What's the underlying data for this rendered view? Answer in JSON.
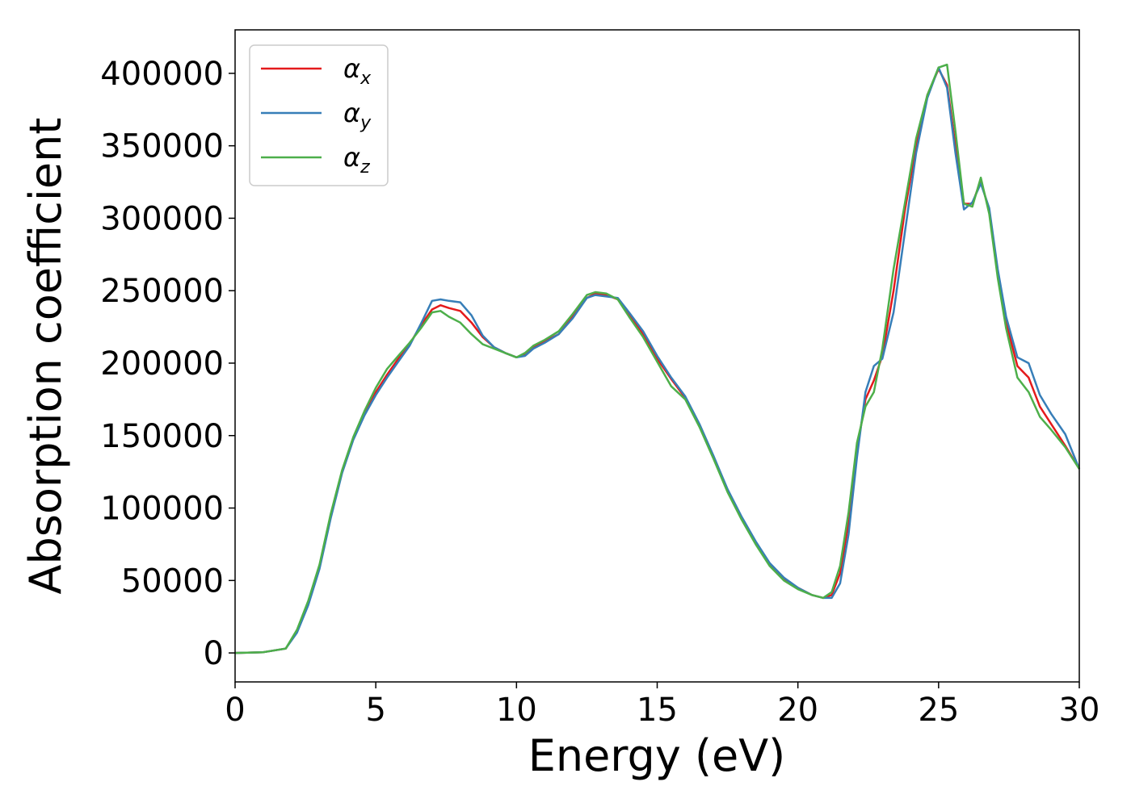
{
  "chart_data": {
    "type": "line",
    "xlabel": "Energy (eV)",
    "ylabel": "Absorption coefficient",
    "xlim": [
      0,
      30
    ],
    "ylim": [
      -20000,
      430000
    ],
    "xticks": [
      0,
      5,
      10,
      15,
      20,
      25,
      30
    ],
    "yticks": [
      0,
      50000,
      100000,
      150000,
      200000,
      250000,
      300000,
      350000,
      400000
    ],
    "grid": false,
    "legend_position": "top-left",
    "x": [
      0,
      1,
      1.8,
      2.2,
      2.6,
      3.0,
      3.4,
      3.8,
      4.2,
      4.6,
      5.0,
      5.4,
      5.8,
      6.2,
      6.6,
      7.0,
      7.3,
      7.6,
      8.0,
      8.4,
      8.8,
      9.2,
      9.6,
      10.0,
      10.3,
      10.6,
      11.0,
      11.5,
      12.0,
      12.5,
      12.8,
      13.2,
      13.6,
      14.0,
      14.5,
      15.0,
      15.5,
      16.0,
      16.5,
      17.0,
      17.5,
      18.0,
      18.5,
      19.0,
      19.5,
      20.0,
      20.5,
      20.9,
      21.2,
      21.5,
      21.8,
      22.1,
      22.4,
      22.7,
      23.0,
      23.4,
      23.8,
      24.2,
      24.6,
      25.0,
      25.3,
      25.6,
      25.9,
      26.2,
      26.5,
      26.8,
      27.1,
      27.4,
      27.8,
      28.2,
      28.6,
      29.0,
      29.5,
      30.0
    ],
    "series": [
      {
        "name": "α_x",
        "label_base": "α",
        "label_sub": "x",
        "color": "#e41a1c",
        "values": [
          0,
          500,
          3000,
          15000,
          35000,
          60000,
          95000,
          125000,
          148000,
          165000,
          180000,
          192000,
          203000,
          213000,
          226000,
          237000,
          240000,
          238000,
          236000,
          228000,
          218000,
          211000,
          207000,
          204000,
          206000,
          211000,
          215000,
          220000,
          232000,
          245000,
          248000,
          247000,
          244000,
          234000,
          220000,
          203000,
          189000,
          176000,
          157000,
          135000,
          112000,
          93000,
          76000,
          61000,
          51000,
          45000,
          40000,
          38000,
          40000,
          55000,
          90000,
          140000,
          175000,
          188000,
          205000,
          250000,
          305000,
          350000,
          385000,
          403000,
          392000,
          350000,
          310000,
          310000,
          326000,
          305000,
          262000,
          228000,
          198000,
          190000,
          170000,
          158000,
          143000,
          127000
        ]
      },
      {
        "name": "α_y",
        "label_base": "α",
        "label_sub": "y",
        "color": "#377eb8",
        "values": [
          0,
          500,
          3000,
          14000,
          33000,
          58000,
          93000,
          124000,
          147000,
          164000,
          178000,
          190000,
          201000,
          212000,
          227000,
          243000,
          244000,
          243000,
          242000,
          233000,
          219000,
          211000,
          207000,
          204000,
          205000,
          210000,
          214000,
          220000,
          231000,
          245000,
          247000,
          246000,
          245000,
          235000,
          222000,
          205000,
          190000,
          177000,
          158000,
          136000,
          113000,
          94000,
          77000,
          62000,
          52000,
          45000,
          40000,
          38000,
          38000,
          48000,
          82000,
          135000,
          180000,
          198000,
          203000,
          235000,
          290000,
          345000,
          383000,
          404000,
          390000,
          345000,
          306000,
          311000,
          324000,
          307000,
          265000,
          232000,
          204000,
          200000,
          178000,
          165000,
          151000,
          127000
        ]
      },
      {
        "name": "α_z",
        "label_base": "α",
        "label_sub": "z",
        "color": "#4daf4a",
        "values": [
          0,
          500,
          3000,
          16000,
          36000,
          61000,
          96000,
          126000,
          149000,
          167000,
          183000,
          196000,
          205000,
          214000,
          224000,
          235000,
          236000,
          232000,
          228000,
          220000,
          213000,
          210000,
          207000,
          204000,
          207000,
          212000,
          216000,
          222000,
          234000,
          247000,
          249000,
          248000,
          244000,
          232000,
          218000,
          201000,
          184000,
          175000,
          156000,
          134000,
          111000,
          92000,
          75000,
          60000,
          50000,
          44000,
          40000,
          38000,
          42000,
          60000,
          97000,
          145000,
          170000,
          180000,
          210000,
          265000,
          310000,
          355000,
          385000,
          404000,
          406000,
          360000,
          310000,
          308000,
          328000,
          303000,
          259000,
          224000,
          190000,
          180000,
          163000,
          154000,
          142000,
          127000
        ]
      }
    ]
  }
}
